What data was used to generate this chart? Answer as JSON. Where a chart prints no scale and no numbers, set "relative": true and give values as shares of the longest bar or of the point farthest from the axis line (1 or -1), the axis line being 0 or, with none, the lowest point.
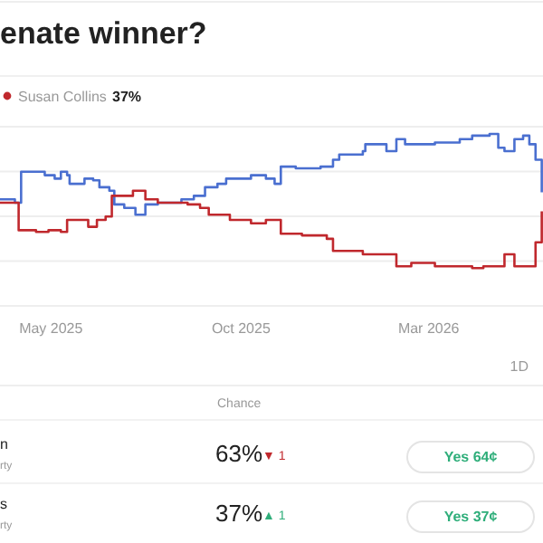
{
  "chart_data": {
    "type": "step",
    "title": "enate winner?",
    "relative": true,
    "grid": true,
    "legend": "top left",
    "marker": "none",
    "line_style": "solid",
    "xlim": [
      "2025-03-21",
      "2026-06-01"
    ],
    "xticks": [
      {
        "value": "2025-05-01",
        "label": "May 2025"
      },
      {
        "value": "2025-10-01",
        "label": "Oct 2025"
      },
      {
        "value": "2026-03-01",
        "label": "Mar 2026"
      }
    ],
    "series": [
      {
        "color": "#4a6fd0",
        "x": [
          "2025-03-21",
          "2025-03-31",
          "2025-04-02",
          "2025-04-07",
          "2025-04-19",
          "2025-04-26",
          "2025-05-04",
          "2025-05-09",
          "2025-05-14",
          "2025-05-16",
          "2025-05-26",
          "2025-05-28",
          "2025-06-04",
          "2025-06-09",
          "2025-06-17",
          "2025-06-21",
          "2025-06-29",
          "2025-07-08",
          "2025-07-16",
          "2025-07-26",
          "2025-08-09",
          "2025-08-14",
          "2025-08-24",
          "2025-09-02",
          "2025-09-12",
          "2025-09-19",
          "2025-10-02",
          "2025-10-09",
          "2025-10-21",
          "2025-10-28",
          "2025-11-02",
          "2025-11-14",
          "2025-12-04",
          "2025-12-14",
          "2025-12-19",
          "2026-01-07",
          "2026-01-09",
          "2026-01-26",
          "2026-02-03",
          "2026-02-10",
          "2026-02-25",
          "2026-03-06",
          "2026-03-26",
          "2026-04-05",
          "2026-04-19",
          "2026-04-26",
          "2026-05-01",
          "2026-05-09",
          "2026-05-16",
          "2026-05-21",
          "2026-05-26",
          "2026-05-31"
        ],
        "values": [
          0.62,
          0.62,
          0.6,
          0.78,
          0.78,
          0.76,
          0.74,
          0.78,
          0.76,
          0.71,
          0.71,
          0.74,
          0.73,
          0.69,
          0.67,
          0.59,
          0.57,
          0.53,
          0.59,
          0.6,
          0.6,
          0.62,
          0.64,
          0.69,
          0.71,
          0.74,
          0.74,
          0.76,
          0.74,
          0.71,
          0.81,
          0.8,
          0.81,
          0.85,
          0.88,
          0.9,
          0.94,
          0.9,
          0.97,
          0.94,
          0.94,
          0.95,
          0.97,
          0.99,
          1,
          0.92,
          0.9,
          0.97,
          0.99,
          0.94,
          0.85,
          0.66
        ]
      },
      {
        "name": "Susan Collins",
        "color": "#c0282d",
        "x": [
          "2025-03-21",
          "2025-03-31",
          "2025-04-05",
          "2025-04-19",
          "2025-04-29",
          "2025-05-09",
          "2025-05-14",
          "2025-05-26",
          "2025-05-31",
          "2025-06-07",
          "2025-06-14",
          "2025-06-19",
          "2025-06-26",
          "2025-07-06",
          "2025-07-16",
          "2025-07-26",
          "2025-08-09",
          "2025-08-19",
          "2025-08-29",
          "2025-09-05",
          "2025-09-17",
          "2025-09-22",
          "2025-10-09",
          "2025-10-21",
          "2025-10-31",
          "2025-11-02",
          "2025-11-19",
          "2025-12-09",
          "2025-12-14",
          "2025-12-28",
          "2026-01-07",
          "2026-01-26",
          "2026-02-03",
          "2026-02-15",
          "2026-03-06",
          "2026-03-26",
          "2026-04-05",
          "2026-04-14",
          "2026-04-24",
          "2026-05-01",
          "2026-05-09",
          "2026-05-18",
          "2026-05-26",
          "2026-05-31"
        ],
        "values": [
          0.6,
          0.6,
          0.44,
          0.43,
          0.44,
          0.43,
          0.5,
          0.5,
          0.46,
          0.5,
          0.52,
          0.64,
          0.64,
          0.67,
          0.62,
          0.6,
          0.6,
          0.59,
          0.57,
          0.53,
          0.53,
          0.5,
          0.48,
          0.5,
          0.5,
          0.42,
          0.41,
          0.39,
          0.32,
          0.32,
          0.3,
          0.3,
          0.23,
          0.25,
          0.23,
          0.23,
          0.22,
          0.23,
          0.23,
          0.3,
          0.23,
          0.23,
          0.37,
          0.55
        ]
      }
    ],
    "annotations": [
      "37%",
      "1D",
      "Chance",
      "n",
      "rty",
      "63%",
      "▼ 1",
      "Yes 64¢",
      "s",
      "rty",
      "37%",
      "▲ 1",
      "Yes 37¢"
    ]
  }
}
